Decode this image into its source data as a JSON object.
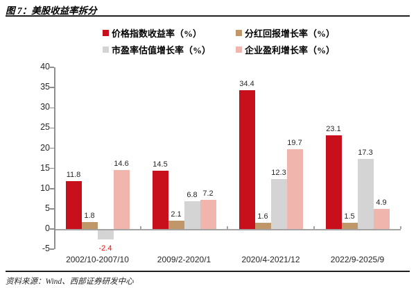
{
  "header": {
    "title": "图 7：美股收益率拆分"
  },
  "footer": {
    "source": "资料来源：Wind、西部证券研发中心"
  },
  "chart_data": {
    "type": "bar",
    "title": "美股收益率拆分",
    "categories": [
      "2002/10-2007/10",
      "2009/2-2020/1",
      "2020/4-2021/12",
      "2022/9-2025/9"
    ],
    "series": [
      {
        "name": "价格指数收益率（%）",
        "color": "#C7101C",
        "values": [
          11.8,
          14.5,
          34.4,
          23.1
        ]
      },
      {
        "name": "分红回报增长率（%）",
        "color": "#C09768",
        "values": [
          1.8,
          2.1,
          1.6,
          1.5
        ]
      },
      {
        "name": "市盈率估值增长率（%）",
        "color": "#D4D4D4",
        "values": [
          -2.4,
          6.8,
          12.3,
          17.3
        ]
      },
      {
        "name": "企业盈利增长率（%）",
        "color": "#F0B6AD",
        "values": [
          14.6,
          7.2,
          19.7,
          4.9
        ]
      }
    ],
    "ylim": [
      -5,
      40
    ],
    "ytick_step": 5,
    "grid": false,
    "legend_position": "top",
    "value_labels": true,
    "value_label_decimals": 1,
    "negative_label_color": "#FF0000",
    "axis_color": "#8E8E8E",
    "zero_line_color": "#A3A3A3",
    "label_color": "#262626"
  }
}
